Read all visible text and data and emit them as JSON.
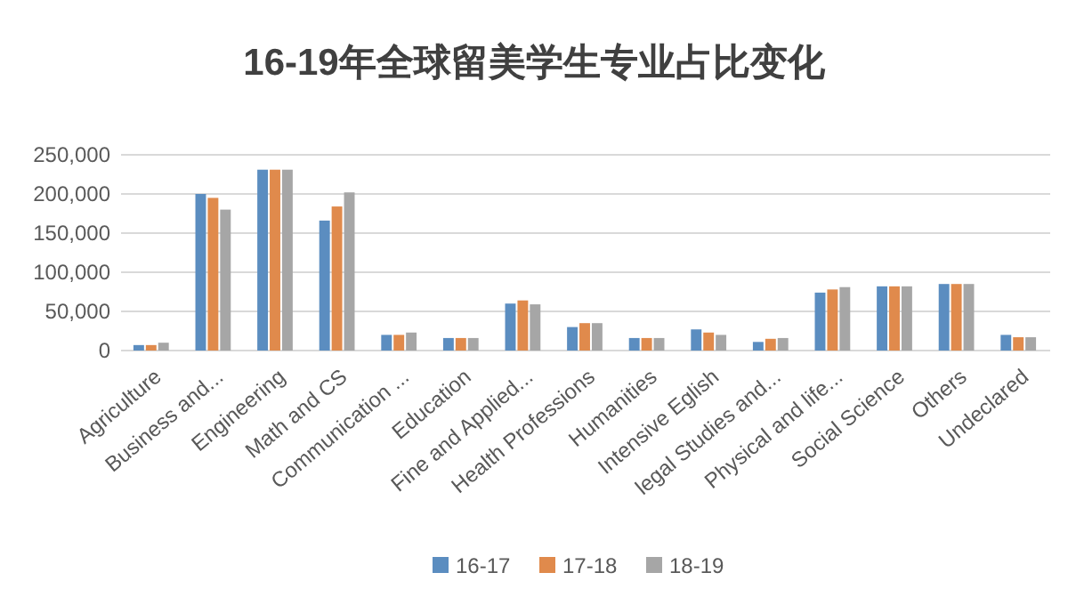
{
  "chart_data": {
    "type": "bar",
    "title": "16-19年全球留美学生专业占比变化",
    "categories": [
      "Agriculture",
      "Business and...",
      "Engineering",
      "Math and CS",
      "Communication ...",
      "Education",
      "Fine and Applied...",
      "Health Professions",
      "Humanities",
      "Intensive Eglish",
      "legal Studies and...",
      "Physical and life...",
      "Social Science",
      "Others",
      "Undeclared"
    ],
    "series": [
      {
        "name": "16-17",
        "color": "#5b8dc0",
        "values": [
          7000,
          200000,
          231000,
          166000,
          20000,
          16000,
          60000,
          30000,
          16000,
          27000,
          11000,
          74000,
          82000,
          85000,
          20000
        ]
      },
      {
        "name": "17-18",
        "color": "#e08a4c",
        "values": [
          7000,
          195000,
          231000,
          184000,
          20000,
          16000,
          64000,
          35000,
          16000,
          23000,
          15000,
          78000,
          82000,
          85000,
          17000
        ]
      },
      {
        "name": "18-19",
        "color": "#a6a6a6",
        "values": [
          10000,
          180000,
          231000,
          202000,
          23000,
          16000,
          59000,
          35000,
          16000,
          20000,
          16000,
          81000,
          82000,
          85000,
          17000
        ]
      }
    ],
    "ylim": [
      0,
      250000
    ],
    "yticks": [
      {
        "value": 0,
        "label": "0"
      },
      {
        "value": 50000,
        "label": "50,000"
      },
      {
        "value": 100000,
        "label": "100,000"
      },
      {
        "value": 150000,
        "label": "150,000"
      },
      {
        "value": 200000,
        "label": "200,000"
      },
      {
        "value": 250000,
        "label": "250,000"
      }
    ],
    "grid": "y",
    "legend": "bottom"
  }
}
